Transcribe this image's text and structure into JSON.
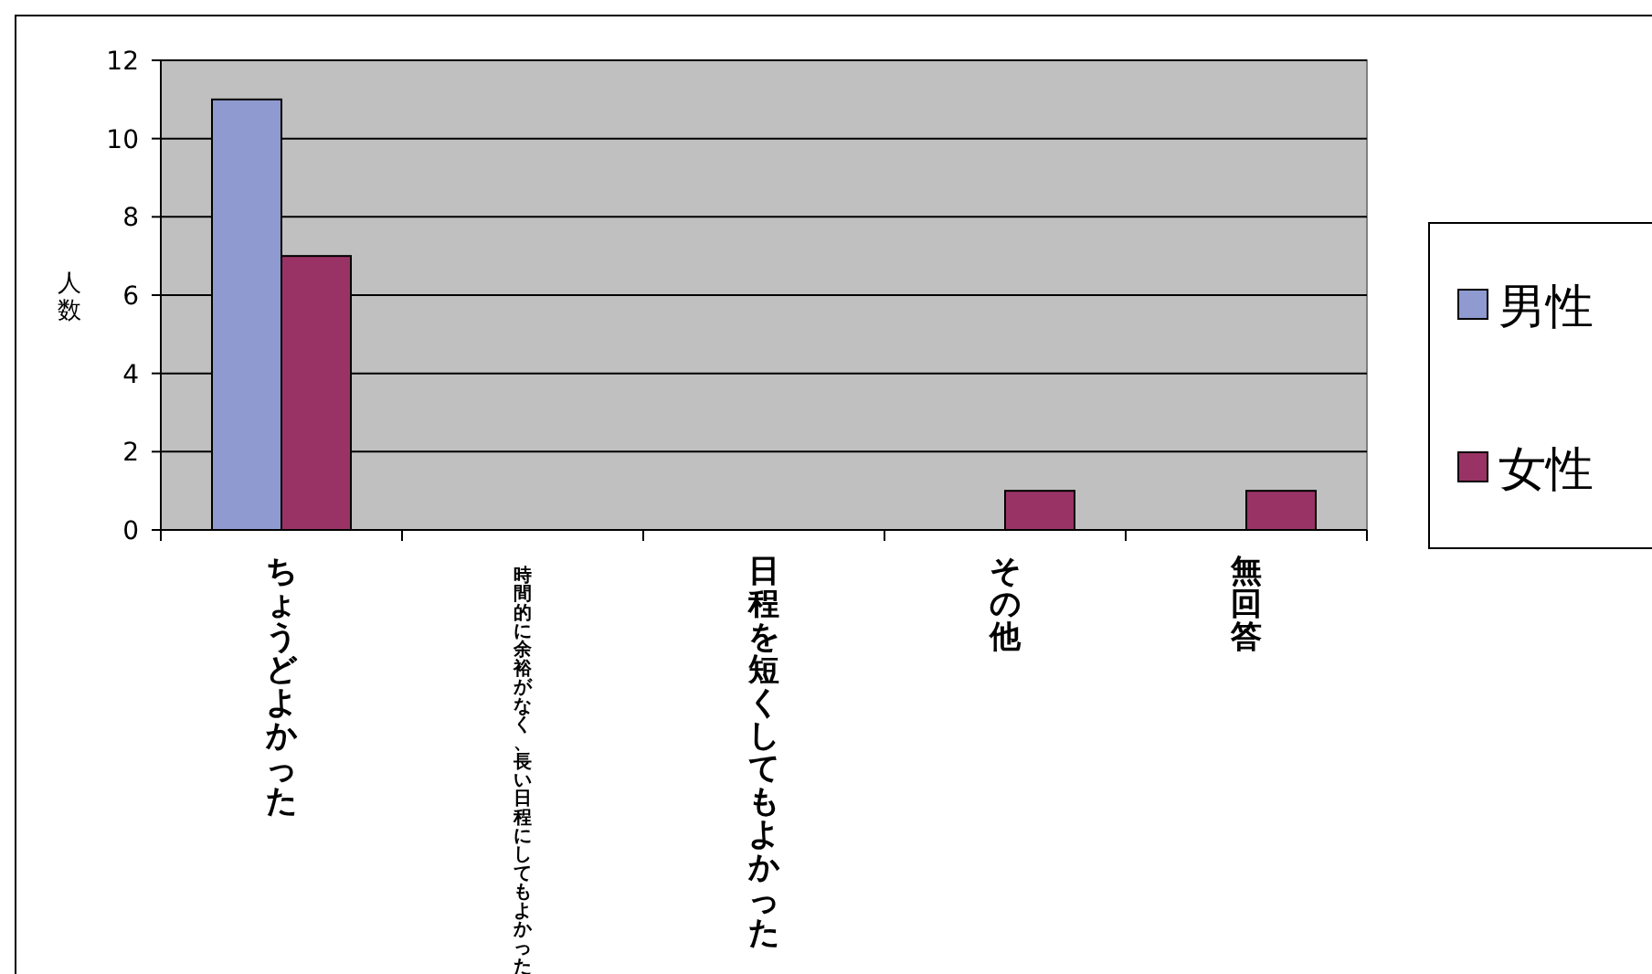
{
  "chart_data": {
    "type": "bar",
    "ylabel": "人数",
    "categories": [
      "ちょうどよかった",
      "時間的に余裕がなく、長い日程にしてもよかった",
      "日程を短くしてもよかった",
      "その他",
      "無回答"
    ],
    "series": [
      {
        "name": "男性",
        "color": "#8e9ad0",
        "values": [
          11,
          0,
          0,
          0,
          0
        ]
      },
      {
        "name": "女性",
        "color": "#993366",
        "values": [
          7,
          0,
          0,
          1,
          1
        ]
      }
    ],
    "ylim": [
      0,
      12
    ],
    "yticks": [
      0,
      2,
      4,
      6,
      8,
      10,
      12
    ],
    "grid": "y",
    "legend": "right"
  }
}
